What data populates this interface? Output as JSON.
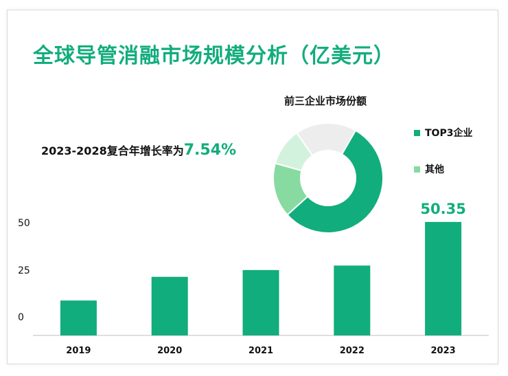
{
  "title": "全球导管消融市场规模分析（亿美元）",
  "cagr": {
    "label": "2023-2028复合年增长率为",
    "value": "7.54%"
  },
  "colors": {
    "accent": "#12ad7c",
    "bar": "#12ad7c",
    "top3": "#12ad7c",
    "other": "#87dba0",
    "other2": "#d3f2dd",
    "other3": "#ededed"
  },
  "chart_data": [
    {
      "type": "bar",
      "categories": [
        "2019",
        "2020",
        "2021",
        "2022",
        "2023"
      ],
      "values": [
        15.5,
        26,
        29,
        31,
        50.35
      ],
      "data_labels": [
        null,
        null,
        null,
        null,
        "50.35"
      ],
      "yticks": [
        "0",
        "25",
        "50"
      ],
      "ylim": [
        0,
        62
      ],
      "grid": false
    },
    {
      "type": "pie",
      "title": "前三企业市场份额",
      "slices": [
        {
          "name": "TOP3企业",
          "value": 55
        },
        {
          "name": "其他",
          "value": 16
        },
        {
          "name": "",
          "value": 11
        },
        {
          "name": "",
          "value": 18
        }
      ],
      "legend": [
        "TOP3企业",
        "其他"
      ],
      "legend_position": "right"
    }
  ]
}
